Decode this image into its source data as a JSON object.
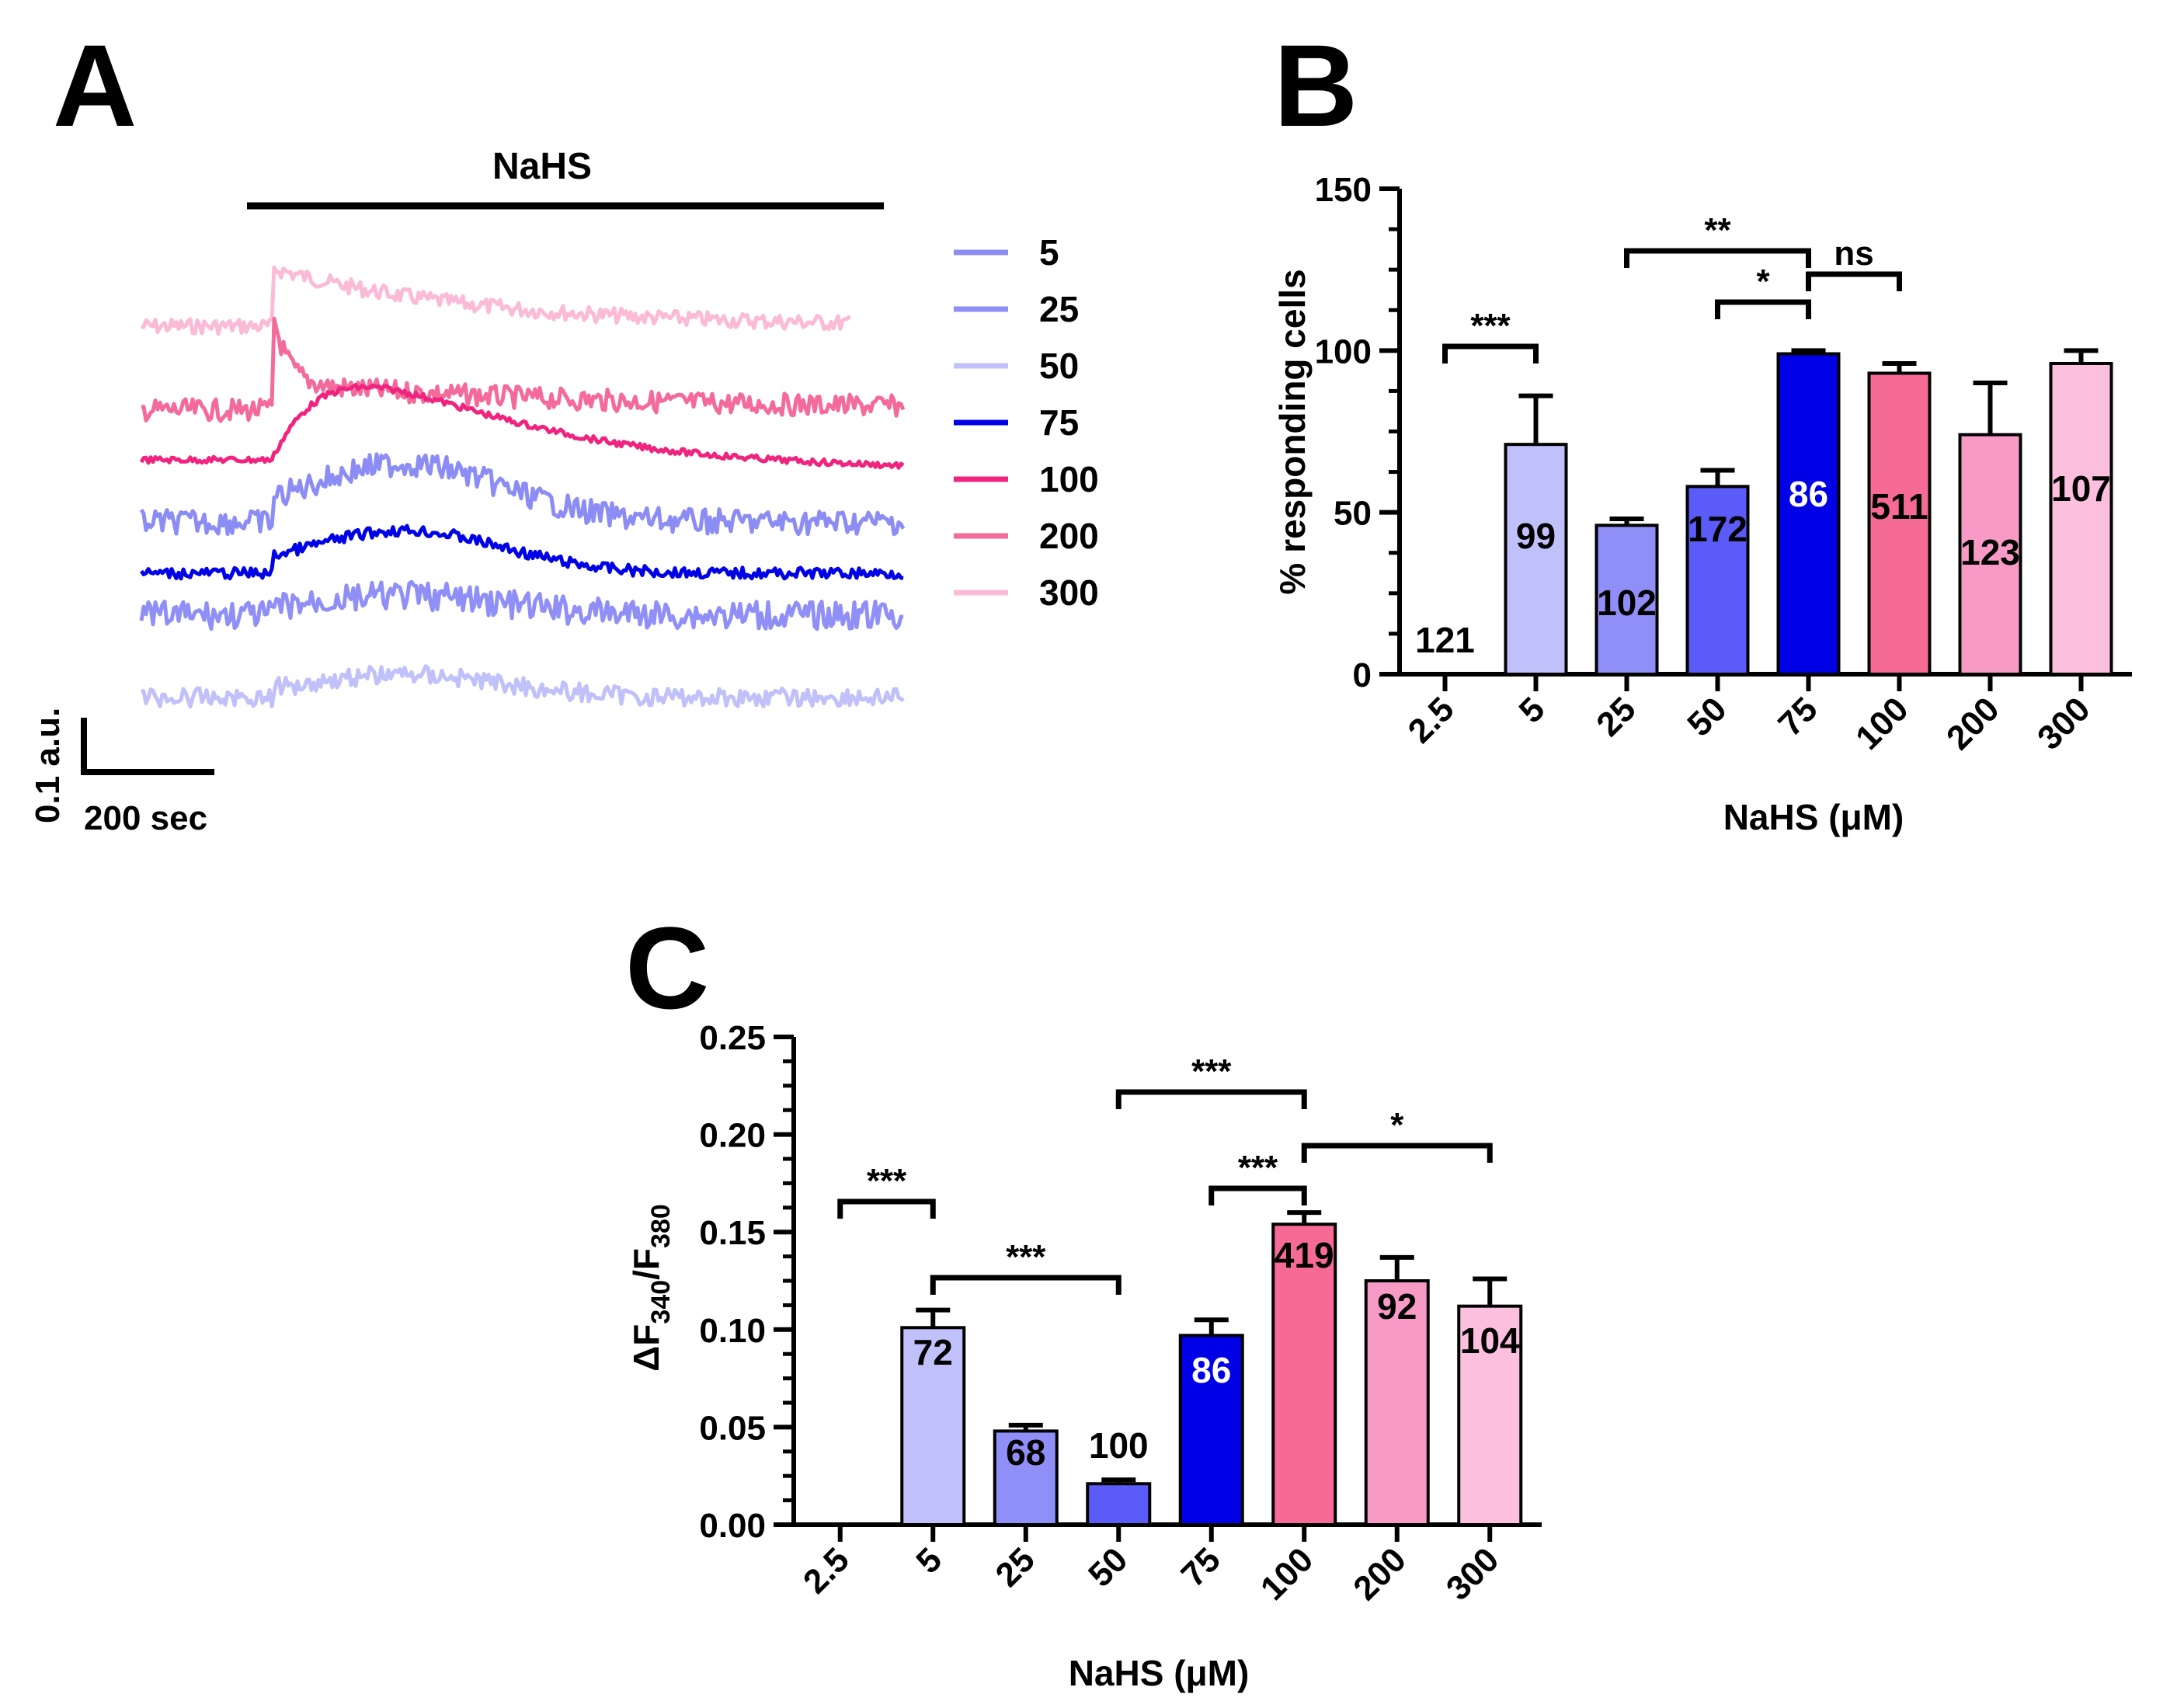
{
  "panels": {
    "a": "A",
    "b": "B",
    "c": "C"
  },
  "traces": {
    "bar_label": "NaHS",
    "scale_y": "0.1 a.u.",
    "scale_x": "200 sec",
    "legend": [
      {
        "label": "5",
        "color": "#8c8cf5"
      },
      {
        "label": "25",
        "color": "#8f8ff7"
      },
      {
        "label": "50",
        "color": "#c0c0fa"
      },
      {
        "label": "75",
        "color": "#0000e6"
      },
      {
        "label": "100",
        "color": "#f0247e"
      },
      {
        "label": "200",
        "color": "#f46a9a"
      },
      {
        "label": "300",
        "color": "#fbbad6"
      }
    ]
  },
  "chart_data": [
    {
      "id": "B",
      "type": "bar",
      "categories": [
        "2.5",
        "5",
        "25",
        "50",
        "75",
        "100",
        "200",
        "300"
      ],
      "values": [
        0,
        71,
        46,
        58,
        99,
        93,
        74,
        96
      ],
      "errors": [
        0,
        15,
        2,
        5,
        1,
        3,
        16,
        4
      ],
      "n_labels": [
        "121",
        "99",
        "102",
        "172",
        "86",
        "511",
        "123",
        "107"
      ],
      "colors": [
        "#ffffff",
        "#c0c0fa",
        "#8f8ff7",
        "#5b5bf7",
        "#0000e6",
        "#f66a96",
        "#f79bc6",
        "#fcc0de"
      ],
      "ylabel": "% responding cells",
      "xlabel": "NaHS (μM)",
      "ylim": [
        0,
        150
      ],
      "yticks": [
        "0",
        "50",
        "100",
        "150"
      ],
      "significance": [
        {
          "from": 0,
          "to": 1,
          "label": "***"
        },
        {
          "from": 2,
          "to": 4,
          "label": "**"
        },
        {
          "from": 3,
          "to": 4,
          "label": "*"
        },
        {
          "from": 4,
          "to": 5,
          "label": "ns"
        }
      ]
    },
    {
      "id": "C",
      "type": "bar",
      "categories": [
        "2.5",
        "5",
        "25",
        "50",
        "75",
        "100",
        "200",
        "300"
      ],
      "values": [
        0,
        0.101,
        0.048,
        0.021,
        0.097,
        0.154,
        0.125,
        0.112
      ],
      "errors": [
        0,
        0.009,
        0.003,
        0.002,
        0.008,
        0.006,
        0.012,
        0.014
      ],
      "n_labels": [
        "",
        "72",
        "68",
        "100",
        "86",
        "419",
        "92",
        "104"
      ],
      "colors": [
        "#ffffff",
        "#c0c0fa",
        "#8f8ff7",
        "#5b5bf7",
        "#0000e6",
        "#f66a96",
        "#f79bc6",
        "#fcc0de"
      ],
      "ylabel_main": "ΔF",
      "ylabel_sub1": "340",
      "ylabel_sep": "/F",
      "ylabel_sub2": "380",
      "xlabel": "NaHS (μM)",
      "ylim": [
        0,
        0.25
      ],
      "yticks": [
        "0.00",
        "0.05",
        "0.10",
        "0.15",
        "0.20",
        "0.25"
      ],
      "significance": [
        {
          "from": 0,
          "to": 1,
          "label": "***"
        },
        {
          "from": 1,
          "to": 3,
          "label": "***"
        },
        {
          "from": 3,
          "to": 5,
          "label": "***"
        },
        {
          "from": 4,
          "to": 5,
          "label": "***"
        },
        {
          "from": 5,
          "to": 7,
          "label": "*"
        }
      ]
    }
  ]
}
